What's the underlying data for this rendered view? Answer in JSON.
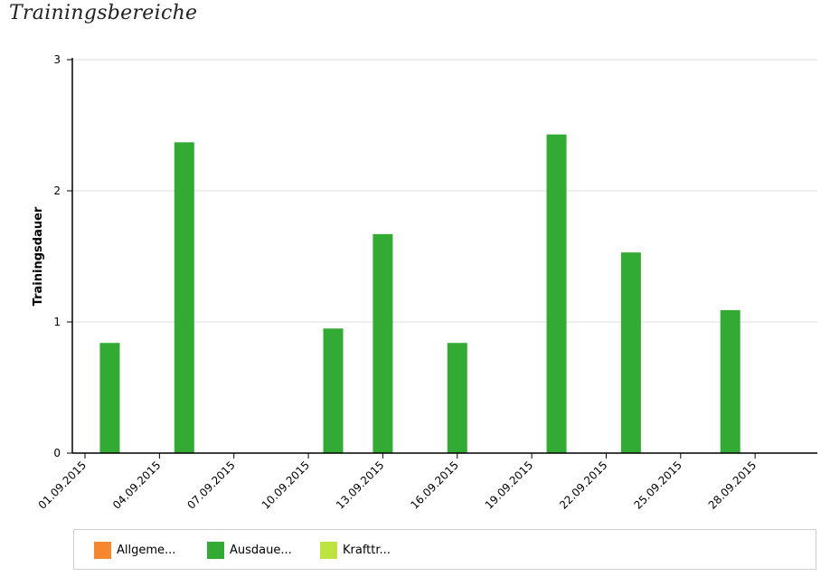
{
  "title": "Trainingsbereiche",
  "colors": {
    "accent": "#33aa33",
    "grid": "#dddddd",
    "axis": "#000000"
  },
  "chart_data": {
    "type": "bar",
    "title": "Trainingsbereiche",
    "xlabel": "",
    "ylabel": "Trainingsdauer",
    "ylim": [
      0,
      3
    ],
    "yticks": [
      0,
      1,
      2,
      3
    ],
    "xlim": [
      "2015-08-31",
      "2015-09-30"
    ],
    "xtick_labels": [
      "01.09.2015",
      "04.09.2015",
      "07.09.2015",
      "10.09.2015",
      "13.09.2015",
      "16.09.2015",
      "19.09.2015",
      "22.09.2015",
      "25.09.2015",
      "28.09.2015"
    ],
    "grid": true,
    "legend_position": "bottom",
    "series": [
      {
        "name": "Allgeme...",
        "color": "#f5872f",
        "points": []
      },
      {
        "name": "Ausdaue...",
        "color": "#33aa33",
        "points": [
          {
            "x": "2015-09-02",
            "y": 0.84
          },
          {
            "x": "2015-09-05",
            "y": 2.37
          },
          {
            "x": "2015-09-11",
            "y": 0.95
          },
          {
            "x": "2015-09-13",
            "y": 1.67
          },
          {
            "x": "2015-09-16",
            "y": 0.84
          },
          {
            "x": "2015-09-20",
            "y": 2.43
          },
          {
            "x": "2015-09-23",
            "y": 1.53
          },
          {
            "x": "2015-09-27",
            "y": 1.09
          }
        ]
      },
      {
        "name": "Krafttr...",
        "color": "#bde33f",
        "points": []
      }
    ]
  }
}
